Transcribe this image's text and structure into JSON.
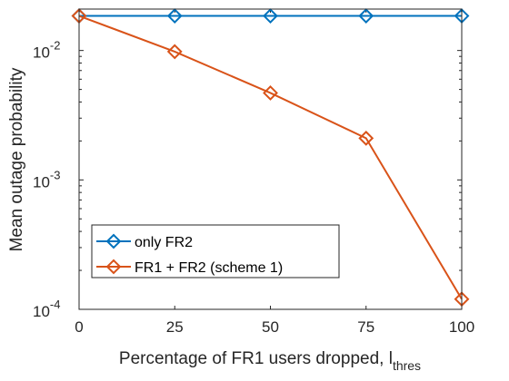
{
  "chart_data": {
    "type": "line",
    "title": "",
    "xlabel": "Percentage of FR1 users dropped, l",
    "xlabel_subscript": "thres",
    "ylabel": "Mean outage probability",
    "x": [
      0,
      25,
      50,
      75,
      100
    ],
    "xlim": [
      0,
      100
    ],
    "ylim": [
      0.0001,
      0.02
    ],
    "yscale": "log",
    "x_ticks": [
      "0",
      "25",
      "50",
      "75",
      "100"
    ],
    "y_ticks": [
      {
        "base": "10",
        "exp": "-4",
        "value": 0.0001
      },
      {
        "base": "10",
        "exp": "-3",
        "value": 0.001
      },
      {
        "base": "10",
        "exp": "-2",
        "value": 0.01
      }
    ],
    "grid": false,
    "legend_position": "bottom-left",
    "marker": "diamond",
    "series": [
      {
        "name": "only FR2",
        "color": "#0072BD",
        "values": [
          0.0185,
          0.0185,
          0.0185,
          0.0185,
          0.0185
        ]
      },
      {
        "name": "FR1 + FR2 (scheme 1)",
        "color": "#D95319",
        "values": [
          0.0185,
          0.0098,
          0.0047,
          0.0021,
          0.00012
        ]
      }
    ]
  }
}
